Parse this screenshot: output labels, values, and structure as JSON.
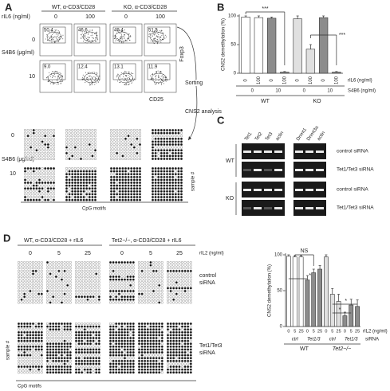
{
  "panel_a": {
    "label": "A",
    "groups": [
      "WT, α-CD3/CD28",
      "KO, α-CD3/CD28"
    ],
    "ril6_label": "rIL6 (ng/ml)",
    "ril6_values": [
      "0",
      "100",
      "0",
      "100"
    ],
    "s4b6_label": "S4B6 (μg/ml)",
    "s4b6_values": [
      "0",
      "10"
    ],
    "gate_percentages": [
      [
        "50.4",
        "46.6",
        "49.4",
        "51.5"
      ],
      [
        "9.0",
        "12.4",
        "13.1",
        "11.9"
      ]
    ],
    "y_axis": "Foxp3",
    "x_axis": "CD25",
    "sorting": "Sorting",
    "cns2_analysis": "CNS2 analysis",
    "methylation": {
      "s4b6_label": "S4B6 (μg/ml)",
      "s4b6_values": [
        "0",
        "10"
      ],
      "x_label": "CpG motifs",
      "y_label": "sample #"
    }
  },
  "chart_data": [
    {
      "type": "bar",
      "label": "B",
      "ylabel": "CNS2 demethylation (%)",
      "ylim": [
        0,
        100
      ],
      "yticks": [
        0,
        50,
        100
      ],
      "categories": [
        "0",
        "100",
        "0",
        "100",
        "0",
        "100",
        "0",
        "100"
      ],
      "category_label": "rIL6 (ng/ml)",
      "s4b6_values": [
        "0",
        "10",
        "0",
        "10"
      ],
      "s4b6_label": "S4B6 (ng/ml)",
      "groups": [
        "WT",
        "KO"
      ],
      "values": [
        98,
        97,
        96,
        2,
        95,
        42,
        97,
        2
      ],
      "errors": [
        2,
        3,
        2,
        1,
        5,
        8,
        3,
        1
      ],
      "colors": [
        "#ffffff",
        "#ffffff",
        "#8c8c8c",
        "#8c8c8c",
        "#e0e0e0",
        "#e0e0e0",
        "#8c8c8c",
        "#8c8c8c"
      ],
      "annotations": [
        "***",
        "***"
      ]
    },
    {
      "type": "bar",
      "ylabel": "CNS2 demethylation (%)",
      "ylim": [
        0,
        100
      ],
      "yticks": [
        0,
        50,
        100
      ],
      "categories": [
        "0",
        "5",
        "25",
        "0",
        "5",
        "25",
        "0",
        "5",
        "25",
        "0",
        "5",
        "25"
      ],
      "category_label": "rIL2 (ng/ml)",
      "sirna": [
        "ctrl",
        "Tet1/3",
        "ctrl",
        "Tet1/3"
      ],
      "sirna_label": "siRNA",
      "groups": [
        "WT",
        "Tet2−/−"
      ],
      "values": [
        98,
        97,
        97,
        65,
        75,
        80,
        97,
        45,
        35,
        15,
        30,
        28
      ],
      "errors": [
        2,
        2,
        2,
        6,
        5,
        5,
        3,
        8,
        10,
        5,
        8,
        9
      ],
      "colors": [
        "#ffffff",
        "#ffffff",
        "#ffffff",
        "#8c8c8c",
        "#8c8c8c",
        "#8c8c8c",
        "#e0e0e0",
        "#e0e0e0",
        "#e0e0e0",
        "#8c8c8c",
        "#8c8c8c",
        "#8c8c8c"
      ],
      "annotations": [
        "NS",
        "*",
        "*",
        "*"
      ]
    }
  ],
  "panel_c": {
    "label": "C",
    "lanes_left": [
      "Tet1",
      "Tet2",
      "Tet3",
      "actin"
    ],
    "lanes_right": [
      "Dnmt1",
      "Dnmt3a",
      "actin"
    ],
    "genotypes": [
      "WT",
      "KO"
    ],
    "conditions": [
      "control siRNA",
      "Tet1/Tet3 siRNA",
      "control siRNA",
      "Tet1/Tet3 siRNA"
    ]
  },
  "panel_d": {
    "label": "D",
    "groups": [
      "WT, α-CD3/CD28 + rIL6",
      "Tet2−/−, α-CD3/CD28 + rIL6"
    ],
    "ril2_label": "rIL2 (ng/ml)",
    "ril2_values": [
      "0",
      "5",
      "25",
      "0",
      "5",
      "25"
    ],
    "conditions": [
      [
        "control",
        "siRNA"
      ],
      [
        "Tet1/Tet3",
        "siRNA"
      ]
    ],
    "y_label": "sample #",
    "x_label": "CpG motifs"
  }
}
